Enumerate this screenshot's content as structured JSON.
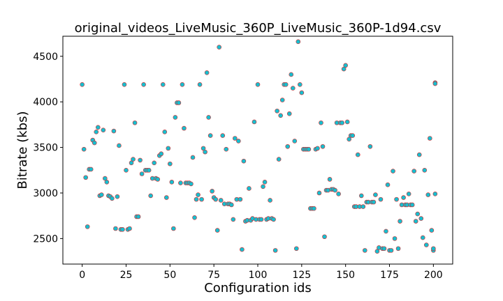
{
  "chart_data": {
    "type": "scatter",
    "title": "original_videos_LiveMusic_360P_LiveMusic_360P-1d94.csv",
    "xlabel": "Configuration ids",
    "ylabel": "Bitrate (kbs)",
    "xlim": [
      -11,
      211
    ],
    "ylim": [
      2220,
      4720
    ],
    "xticks": [
      0,
      25,
      50,
      75,
      100,
      125,
      150,
      175,
      200
    ],
    "yticks": [
      2500,
      3000,
      3500,
      4000,
      4500
    ],
    "grid": false,
    "colors": {
      "point": "#17becf",
      "point_edge": "#d62728"
    },
    "points": [
      [
        0,
        4190
      ],
      [
        1,
        3480
      ],
      [
        2,
        3170
      ],
      [
        3,
        2630
      ],
      [
        4,
        3260
      ],
      [
        5,
        3260
      ],
      [
        6,
        3580
      ],
      [
        7,
        3550
      ],
      [
        8,
        3670
      ],
      [
        9,
        3720
      ],
      [
        10,
        2970
      ],
      [
        11,
        2980
      ],
      [
        12,
        3690
      ],
      [
        13,
        3160
      ],
      [
        14,
        3120
      ],
      [
        15,
        2970
      ],
      [
        16,
        2960
      ],
      [
        17,
        2940
      ],
      [
        18,
        3680
      ],
      [
        19,
        2610
      ],
      [
        20,
        2960
      ],
      [
        21,
        3520
      ],
      [
        22,
        2600
      ],
      [
        23,
        2600
      ],
      [
        24,
        4190
      ],
      [
        25,
        3250
      ],
      [
        26,
        2600
      ],
      [
        27,
        2610
      ],
      [
        28,
        3330
      ],
      [
        29,
        3370
      ],
      [
        30,
        3770
      ],
      [
        31,
        2740
      ],
      [
        32,
        2740
      ],
      [
        33,
        3360
      ],
      [
        34,
        3210
      ],
      [
        35,
        4190
      ],
      [
        36,
        3250
      ],
      [
        37,
        3250
      ],
      [
        38,
        3250
      ],
      [
        39,
        2970
      ],
      [
        40,
        3160
      ],
      [
        41,
        3330
      ],
      [
        42,
        3160
      ],
      [
        43,
        3150
      ],
      [
        44,
        3410
      ],
      [
        45,
        3430
      ],
      [
        46,
        4190
      ],
      [
        47,
        3670
      ],
      [
        48,
        2950
      ],
      [
        49,
        3490
      ],
      [
        50,
        3320
      ],
      [
        51,
        3120
      ],
      [
        52,
        2610
      ],
      [
        53,
        3830
      ],
      [
        54,
        3990
      ],
      [
        55,
        3990
      ],
      [
        56,
        3110
      ],
      [
        57,
        4190
      ],
      [
        58,
        3710
      ],
      [
        59,
        3110
      ],
      [
        60,
        3110
      ],
      [
        61,
        3110
      ],
      [
        62,
        3100
      ],
      [
        63,
        3390
      ],
      [
        64,
        2730
      ],
      [
        65,
        2930
      ],
      [
        66,
        2980
      ],
      [
        67,
        4190
      ],
      [
        68,
        2930
      ],
      [
        69,
        3490
      ],
      [
        70,
        3450
      ],
      [
        71,
        4320
      ],
      [
        72,
        3830
      ],
      [
        73,
        3630
      ],
      [
        74,
        3020
      ],
      [
        75,
        2950
      ],
      [
        76,
        2930
      ],
      [
        77,
        2590
      ],
      [
        78,
        4600
      ],
      [
        79,
        2920
      ],
      [
        80,
        3630
      ],
      [
        81,
        2880
      ],
      [
        82,
        3480
      ],
      [
        83,
        2880
      ],
      [
        84,
        2880
      ],
      [
        85,
        2870
      ],
      [
        86,
        2710
      ],
      [
        87,
        3600
      ],
      [
        88,
        2930
      ],
      [
        89,
        3570
      ],
      [
        90,
        2930
      ],
      [
        91,
        2380
      ],
      [
        92,
        3350
      ],
      [
        93,
        2690
      ],
      [
        94,
        2700
      ],
      [
        95,
        3050
      ],
      [
        96,
        2700
      ],
      [
        97,
        2720
      ],
      [
        98,
        3780
      ],
      [
        99,
        2710
      ],
      [
        100,
        4190
      ],
      [
        101,
        2710
      ],
      [
        102,
        2710
      ],
      [
        103,
        3070
      ],
      [
        104,
        3120
      ],
      [
        105,
        2710
      ],
      [
        106,
        2720
      ],
      [
        107,
        2920
      ],
      [
        108,
        2720
      ],
      [
        109,
        2710
      ],
      [
        110,
        2370
      ],
      [
        111,
        3900
      ],
      [
        112,
        3370
      ],
      [
        113,
        3850
      ],
      [
        114,
        4020
      ],
      [
        115,
        4190
      ],
      [
        116,
        4190
      ],
      [
        117,
        3510
      ],
      [
        118,
        3870
      ],
      [
        119,
        4300
      ],
      [
        120,
        4150
      ],
      [
        121,
        3570
      ],
      [
        122,
        2390
      ],
      [
        123,
        4660
      ],
      [
        124,
        4190
      ],
      [
        125,
        4100
      ],
      [
        126,
        3480
      ],
      [
        127,
        3480
      ],
      [
        128,
        3480
      ],
      [
        129,
        3480
      ],
      [
        130,
        2830
      ],
      [
        131,
        2830
      ],
      [
        132,
        2830
      ],
      [
        133,
        3480
      ],
      [
        134,
        3490
      ],
      [
        135,
        3000
      ],
      [
        136,
        3770
      ],
      [
        137,
        3510
      ],
      [
        138,
        2520
      ],
      [
        139,
        3030
      ],
      [
        140,
        3030
      ],
      [
        141,
        3150
      ],
      [
        142,
        3040
      ],
      [
        143,
        3040
      ],
      [
        144,
        3030
      ],
      [
        145,
        3770
      ],
      [
        146,
        2990
      ],
      [
        147,
        3770
      ],
      [
        148,
        3770
      ],
      [
        149,
        4360
      ],
      [
        150,
        4400
      ],
      [
        151,
        3780
      ],
      [
        152,
        3590
      ],
      [
        153,
        3630
      ],
      [
        154,
        3630
      ],
      [
        155,
        2850
      ],
      [
        156,
        2850
      ],
      [
        157,
        3420
      ],
      [
        158,
        2850
      ],
      [
        159,
        2970
      ],
      [
        160,
        2850
      ],
      [
        161,
        2370
      ],
      [
        162,
        2900
      ],
      [
        163,
        2900
      ],
      [
        164,
        3510
      ],
      [
        165,
        2900
      ],
      [
        166,
        2900
      ],
      [
        167,
        2980
      ],
      [
        168,
        2360
      ],
      [
        169,
        2400
      ],
      [
        170,
        2930
      ],
      [
        171,
        2390
      ],
      [
        172,
        2390
      ],
      [
        173,
        2580
      ],
      [
        174,
        3090
      ],
      [
        175,
        2370
      ],
      [
        176,
        2370
      ],
      [
        177,
        3240
      ],
      [
        178,
        2500
      ],
      [
        179,
        2930
      ],
      [
        180,
        2390
      ],
      [
        181,
        2690
      ],
      [
        182,
        2870
      ],
      [
        183,
        2950
      ],
      [
        184,
        2870
      ],
      [
        185,
        2870
      ],
      [
        186,
        2990
      ],
      [
        187,
        2870
      ],
      [
        188,
        2870
      ],
      [
        189,
        3240
      ],
      [
        190,
        2690
      ],
      [
        191,
        2770
      ],
      [
        192,
        3420
      ],
      [
        193,
        2720
      ],
      [
        194,
        2510
      ],
      [
        195,
        3250
      ],
      [
        196,
        2430
      ],
      [
        197,
        2980
      ],
      [
        198,
        3600
      ],
      [
        199,
        2590
      ],
      [
        200,
        2370
      ],
      [
        200,
        2390
      ],
      [
        201,
        2990
      ],
      [
        201,
        4210
      ],
      [
        201,
        4200
      ]
    ]
  }
}
